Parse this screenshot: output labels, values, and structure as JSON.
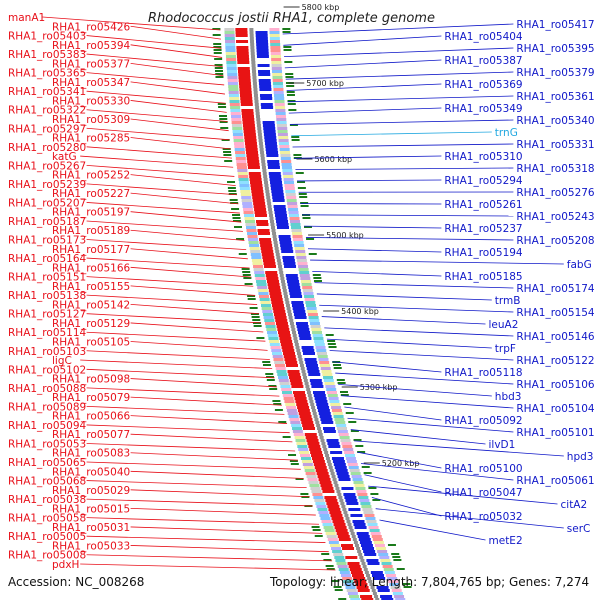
{
  "title": "Rhodococcus jostii RHA1, complete genome",
  "footer": {
    "accession": "Accession: NC_008268",
    "topology": "Topology: linear; Length: 7,804,765 bp; Genes: 7,274"
  },
  "colors": {
    "left_label": "#e8101a",
    "right_label": "#1018c8",
    "rna_label": "#22a8e0",
    "left_genes": "#e81414",
    "right_genes": "#1420e0",
    "backbone": "#909090",
    "tick_mark": "#1a7a1a"
  },
  "scale_ticks": [
    "5800 kbp",
    "5700 kbp",
    "5600 kbp",
    "5500 kbp",
    "5400 kbp",
    "5300 kbp",
    "5200 kbp"
  ],
  "left_labels": [
    "manA1",
    "RHA1_ro05426",
    "RHA1_ro05403",
    "RHA1_ro05394",
    "RHA1_ro05383",
    "RHA1_ro05377",
    "RHA1_ro05365",
    "RHA1_ro05347",
    "RHA1_ro05341",
    "RHA1_ro05330",
    "RHA1_ro05322",
    "RHA1_ro05309",
    "RHA1_ro05297",
    "RHA1_ro05285",
    "RHA1_ro05280",
    "katG",
    "RHA1_ro05267",
    "RHA1_ro05252",
    "RHA1_ro05239",
    "RHA1_ro05227",
    "RHA1_ro05207",
    "RHA1_ro05197",
    "RHA1_ro05187",
    "RHA1_ro05189",
    "RHA1_ro05173",
    "RHA1_ro05177",
    "RHA1_ro05164",
    "RHA1_ro05166",
    "RHA1_ro05151",
    "RHA1_ro05155",
    "RHA1_ro05138",
    "RHA1_ro05142",
    "RHA1_ro05127",
    "RHA1_ro05129",
    "RHA1_ro05114",
    "RHA1_ro05105",
    "RHA1_ro05103",
    "ligC",
    "RHA1_ro05102",
    "RHA1_ro05098",
    "RHA1_ro05088",
    "RHA1_ro05079",
    "RHA1_ro05089",
    "RHA1_ro05066",
    "RHA1_ro05094",
    "RHA1_ro05077",
    "RHA1_ro05053",
    "RHA1_ro05083",
    "RHA1_ro05065",
    "RHA1_ro05040",
    "RHA1_ro05068",
    "RHA1_ro05029",
    "RHA1_ro05038",
    "RHA1_ro05015",
    "RHA1_ro05058",
    "RHA1_ro05031",
    "RHA1_ro05005",
    "RHA1_ro05033",
    "RHA1_ro05008",
    "pdxH"
  ],
  "right_labels": [
    "RHA1_ro05417",
    "RHA1_ro05404",
    "RHA1_ro05395",
    "RHA1_ro05387",
    "RHA1_ro05379",
    "RHA1_ro05369",
    "RHA1_ro05361",
    "RHA1_ro05349",
    "RHA1_ro05340",
    "trnG",
    "RHA1_ro05331",
    "RHA1_ro05310",
    "RHA1_ro05318",
    "RHA1_ro05294",
    "RHA1_ro05276",
    "RHA1_ro05261",
    "RHA1_ro05243",
    "RHA1_ro05237",
    "RHA1_ro05208",
    "RHA1_ro05194",
    "fabG",
    "RHA1_ro05185",
    "RHA1_ro05174",
    "trmB",
    "RHA1_ro05154",
    "leuA2",
    "RHA1_ro05146",
    "trpF",
    "RHA1_ro05122",
    "RHA1_ro05118",
    "RHA1_ro05106",
    "hbd3",
    "RHA1_ro05104",
    "RHA1_ro05092",
    "RHA1_ro05101",
    "ilvD1",
    "hpd3",
    "RHA1_ro05100",
    "RHA1_ro05061",
    "RHA1_ro05047",
    "citA2",
    "RHA1_ro05032",
    "serC",
    "metE2"
  ]
}
